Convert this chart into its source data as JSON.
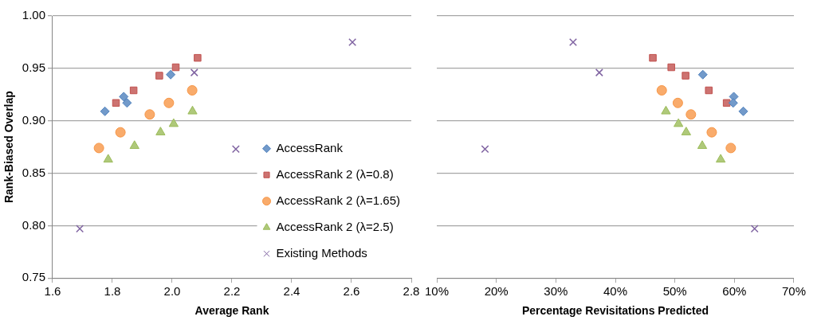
{
  "chart_data": [
    {
      "type": "scatter",
      "xlabel": "Average Rank",
      "ylabel": "Rank-Biased Overlap",
      "xlim": [
        1.6,
        2.8
      ],
      "xticks": [
        1.6,
        1.8,
        {
          "value": 2,
          "label": "2.0"
        },
        2.2,
        2.4,
        2.6,
        2.8
      ],
      "ylim": [
        0.75,
        1.0
      ],
      "yticks": [
        0.75,
        {
          "value": 0.8,
          "label": "0.80"
        },
        0.85,
        {
          "value": 0.9,
          "label": "0.90"
        },
        0.95,
        {
          "value": 1,
          "label": "1.00"
        }
      ],
      "grid": "y",
      "legend": "bottom right",
      "series": [
        {
          "name": "AccessRank",
          "color": "#4f81bd",
          "marker": "diamond",
          "x": [
            1.775,
            1.838,
            1.849,
            1.995
          ],
          "values": [
            0.909,
            0.923,
            0.917,
            0.944
          ]
        },
        {
          "name": "AccessRank 2 (λ=0.8)",
          "color": "#c0504d",
          "marker": "square",
          "x": [
            1.812,
            1.871,
            1.957,
            2.012,
            2.085
          ],
          "values": [
            0.917,
            0.929,
            0.943,
            0.951,
            0.96
          ]
        },
        {
          "name": "AccessRank 2 (λ=1.65)",
          "color": "#f79646",
          "marker": "circle",
          "x": [
            1.755,
            1.827,
            1.925,
            1.989,
            2.067
          ],
          "values": [
            0.874,
            0.889,
            0.906,
            0.917,
            0.929
          ]
        },
        {
          "name": "AccessRank 2 (λ=2.5)",
          "color": "#9bbb59",
          "marker": "triangle",
          "x": [
            1.786,
            1.874,
            1.961,
            2.005,
            2.068
          ],
          "values": [
            0.863,
            0.876,
            0.889,
            0.897,
            0.909
          ]
        },
        {
          "name": "Existing Methods",
          "color": "#8064a2",
          "marker": "cross",
          "x": [
            1.691,
            2.074,
            2.213,
            2.603
          ],
          "values": [
            0.797,
            0.946,
            0.873,
            0.975
          ]
        }
      ]
    },
    {
      "type": "scatter",
      "xlabel": "Percentage Revisitations Predicted",
      "xlim": [
        10,
        70
      ],
      "xticks": [
        {
          "value": 10,
          "label": "10%"
        },
        {
          "value": 20,
          "label": "20%"
        },
        {
          "value": 30,
          "label": "30%"
        },
        {
          "value": 40,
          "label": "40%"
        },
        {
          "value": 50,
          "label": "50%"
        },
        {
          "value": 60,
          "label": "60%"
        },
        {
          "value": 70,
          "label": "70%"
        }
      ],
      "ylim": [
        0.75,
        1.0
      ],
      "yticks": [
        0.75,
        0.8,
        0.85,
        0.9,
        0.95,
        1
      ],
      "grid": "y",
      "tick_labels": "x",
      "series": [
        {
          "color": "#4f81bd",
          "marker": "diamond",
          "x": [
            61.5,
            59.9,
            59.8,
            54.7
          ],
          "values": [
            0.909,
            0.923,
            0.917,
            0.944
          ]
        },
        {
          "color": "#c0504d",
          "marker": "square",
          "x": [
            58.7,
            55.7,
            51.8,
            49.4,
            46.3
          ],
          "values": [
            0.917,
            0.929,
            0.943,
            0.951,
            0.96
          ]
        },
        {
          "color": "#f79646",
          "marker": "circle",
          "x": [
            59.4,
            56.2,
            52.7,
            50.5,
            47.8
          ],
          "values": [
            0.874,
            0.889,
            0.906,
            0.917,
            0.929
          ]
        },
        {
          "color": "#9bbb59",
          "marker": "triangle",
          "x": [
            57.7,
            54.6,
            51.9,
            50.6,
            48.5
          ],
          "values": [
            0.863,
            0.876,
            0.889,
            0.897,
            0.909
          ]
        },
        {
          "color": "#8064a2",
          "marker": "cross",
          "x": [
            63.4,
            37.3,
            18.1,
            32.9
          ],
          "values": [
            0.797,
            0.946,
            0.873,
            0.975
          ]
        }
      ]
    }
  ]
}
